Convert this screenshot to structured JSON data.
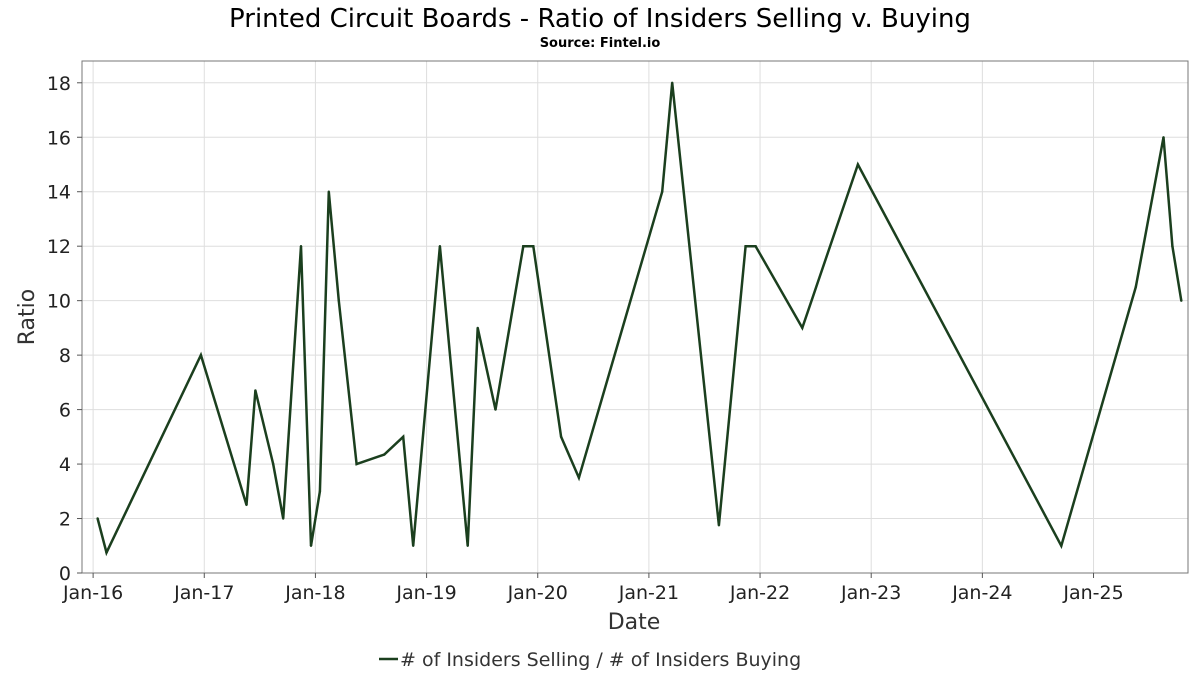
{
  "chart_data": {
    "type": "line",
    "title": "Printed Circuit Boards - Ratio of Insiders Selling v. Buying",
    "subtitle": "Source: Fintel.io",
    "xlabel": "Date",
    "ylabel": "Ratio",
    "xlim": [
      2015.9,
      2025.85
    ],
    "ylim": [
      0,
      18.8
    ],
    "grid": true,
    "legend_position": "bottom-center",
    "x_ticks": [
      {
        "label": "Jan-16",
        "value": 2016
      },
      {
        "label": "Jan-17",
        "value": 2017
      },
      {
        "label": "Jan-18",
        "value": 2018
      },
      {
        "label": "Jan-19",
        "value": 2019
      },
      {
        "label": "Jan-20",
        "value": 2020
      },
      {
        "label": "Jan-21",
        "value": 2021
      },
      {
        "label": "Jan-22",
        "value": 2022
      },
      {
        "label": "Jan-23",
        "value": 2023
      },
      {
        "label": "Jan-24",
        "value": 2024
      },
      {
        "label": "Jan-25",
        "value": 2025
      }
    ],
    "y_ticks": [
      0,
      2,
      4,
      6,
      8,
      10,
      12,
      14,
      16,
      18
    ],
    "series": [
      {
        "name": "# of Insiders Selling / # of Insiders Buying",
        "color": "#1b3f1e",
        "points": [
          {
            "x": 2016.04,
            "y": 2.0
          },
          {
            "x": 2016.12,
            "y": 0.75
          },
          {
            "x": 2016.97,
            "y": 8.0
          },
          {
            "x": 2017.38,
            "y": 2.5
          },
          {
            "x": 2017.46,
            "y": 6.7
          },
          {
            "x": 2017.62,
            "y": 4.0
          },
          {
            "x": 2017.71,
            "y": 2.0
          },
          {
            "x": 2017.87,
            "y": 12.0
          },
          {
            "x": 2017.96,
            "y": 1.0
          },
          {
            "x": 2018.04,
            "y": 3.0
          },
          {
            "x": 2018.12,
            "y": 14.0
          },
          {
            "x": 2018.21,
            "y": 10.0
          },
          {
            "x": 2018.37,
            "y": 4.0
          },
          {
            "x": 2018.62,
            "y": 4.35
          },
          {
            "x": 2018.79,
            "y": 5.0
          },
          {
            "x": 2018.88,
            "y": 1.0
          },
          {
            "x": 2019.12,
            "y": 12.0
          },
          {
            "x": 2019.37,
            "y": 1.0
          },
          {
            "x": 2019.46,
            "y": 9.0
          },
          {
            "x": 2019.62,
            "y": 6.0
          },
          {
            "x": 2019.87,
            "y": 12.0
          },
          {
            "x": 2019.96,
            "y": 12.0
          },
          {
            "x": 2020.21,
            "y": 5.0
          },
          {
            "x": 2020.37,
            "y": 3.5
          },
          {
            "x": 2021.12,
            "y": 14.0
          },
          {
            "x": 2021.21,
            "y": 18.0
          },
          {
            "x": 2021.63,
            "y": 1.75
          },
          {
            "x": 2021.87,
            "y": 12.0
          },
          {
            "x": 2021.96,
            "y": 12.0
          },
          {
            "x": 2022.38,
            "y": 9.0
          },
          {
            "x": 2022.88,
            "y": 15.0
          },
          {
            "x": 2024.71,
            "y": 1.0
          },
          {
            "x": 2025.38,
            "y": 10.5
          },
          {
            "x": 2025.63,
            "y": 16.0
          },
          {
            "x": 2025.71,
            "y": 12.0
          },
          {
            "x": 2025.79,
            "y": 10.0
          }
        ]
      }
    ]
  }
}
